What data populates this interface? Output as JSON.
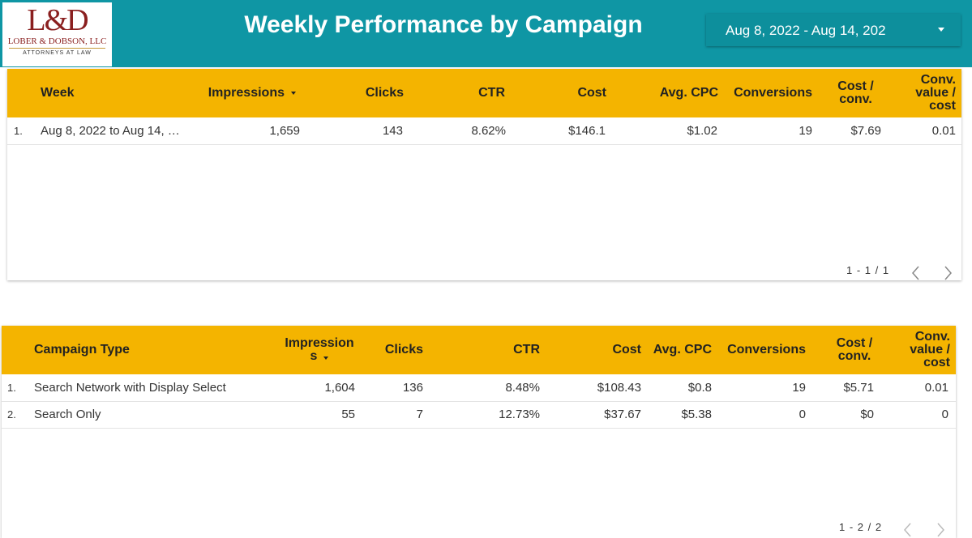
{
  "header": {
    "logo": {
      "monogram": "L&D",
      "firm_name": "LOBER & DOBSON, LLC",
      "tagline": "ATTORNEYS AT LAW"
    },
    "title": "Weekly Performance by Campaign",
    "date_range": "Aug 8, 2022 - Aug 14, 202",
    "date_range_icon": "chevron-down-icon"
  },
  "colors": {
    "header_bg": "#0f96a4",
    "table_header_bg": "#f4b400",
    "logo_red": "#8a1f1f"
  },
  "weekly_table": {
    "columns": [
      "Week",
      "Impressions",
      "Clicks",
      "CTR",
      "Cost",
      "Avg. CPC",
      "Conversions",
      "Cost / conv.",
      "Conv. value / cost"
    ],
    "sorted_column": "Impressions",
    "rows": [
      {
        "index": "1.",
        "week": "Aug 8, 2022 to Aug 14, …",
        "impressions": "1,659",
        "clicks": "143",
        "ctr": "8.62%",
        "cost": "$146.1",
        "avg_cpc": "$1.02",
        "conversions": "19",
        "cost_per_conv": "$7.69",
        "conv_value_cost": "0.01"
      }
    ],
    "pagination": "1 - 1 / 1"
  },
  "campaign_table": {
    "columns": [
      "Campaign Type",
      "Impressions",
      "Clicks",
      "CTR",
      "Cost",
      "Avg. CPC",
      "Conversions",
      "Cost / conv.",
      "Conv. value / cost"
    ],
    "sorted_column": "Impressions",
    "rows": [
      {
        "index": "1.",
        "type": "Search Network with Display Select",
        "impressions": "1,604",
        "clicks": "136",
        "ctr": "8.48%",
        "cost": "$108.43",
        "avg_cpc": "$0.8",
        "conversions": "19",
        "cost_per_conv": "$5.71",
        "conv_value_cost": "0.01"
      },
      {
        "index": "2.",
        "type": "Search Only",
        "impressions": "55",
        "clicks": "7",
        "ctr": "12.73%",
        "cost": "$37.67",
        "avg_cpc": "$5.38",
        "conversions": "0",
        "cost_per_conv": "$0",
        "conv_value_cost": "0"
      }
    ],
    "pagination": "1 - 2 / 2"
  }
}
